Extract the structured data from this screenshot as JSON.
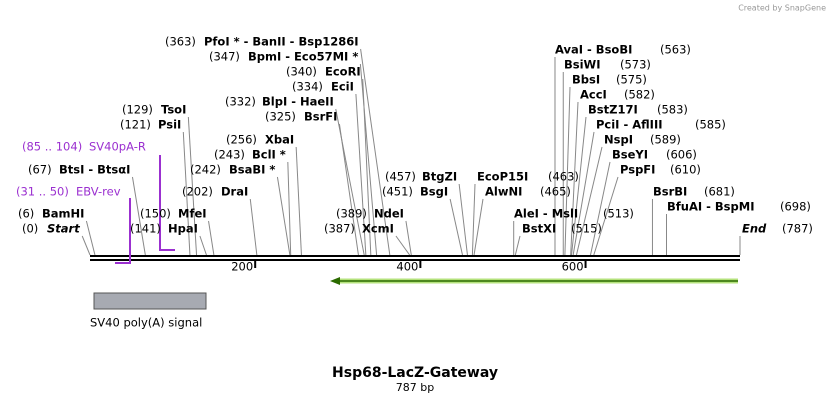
{
  "credit": "Created by SnapGene",
  "title": "Hsp68-LacZ-Gateway",
  "length": "787 bp",
  "ruler": [
    200,
    400,
    600
  ],
  "features": [
    {
      "name": "SV40 poly(A) signal"
    }
  ],
  "primers": [
    {
      "range": "(85 .. 104)",
      "name": "SV40pA-R"
    },
    {
      "range": "(31 .. 50)",
      "name": "EBV-rev"
    }
  ],
  "sites": [
    {
      "pos": "(363)",
      "name": "PfoI * - BanII - Bsp1286I"
    },
    {
      "pos": "(347)",
      "name": "BpmI - Eco57MI *"
    },
    {
      "pos": "(340)",
      "name": "EcoRI"
    },
    {
      "pos": "(334)",
      "name": "EciI"
    },
    {
      "pos": "(332)",
      "name": "BlpI - HaeII"
    },
    {
      "pos": "(325)",
      "name": "BsrFI"
    },
    {
      "pos": "(129)",
      "name": "TsoI"
    },
    {
      "pos": "(121)",
      "name": "PsiI"
    },
    {
      "pos": "(256)",
      "name": "XbaI"
    },
    {
      "pos": "(243)",
      "name": "BclI *"
    },
    {
      "pos": "(67)",
      "name": "BtsI - BtsαI"
    },
    {
      "pos": "(242)",
      "name": "BsaBI *"
    },
    {
      "pos": "(202)",
      "name": "DraI"
    },
    {
      "pos": "(457)",
      "name": "BtgZI"
    },
    {
      "pos": "(451)",
      "name": "BsgI"
    },
    {
      "pos": "(463)",
      "name": "EcoP15I"
    },
    {
      "pos": "(465)",
      "name": "AlwNI"
    },
    {
      "pos": "(6)",
      "name": "BamHI"
    },
    {
      "pos": "(150)",
      "name": "MfeI"
    },
    {
      "pos": "(389)",
      "name": "NdeI"
    },
    {
      "pos": "(513)",
      "name": "AleI - MslI"
    },
    {
      "pos": "(0)",
      "name": "Start"
    },
    {
      "pos": "(141)",
      "name": "HpaI"
    },
    {
      "pos": "(387)",
      "name": "XcmI"
    },
    {
      "pos": "(515)",
      "name": "BstXI"
    },
    {
      "pos": "(787)",
      "name": "End"
    },
    {
      "pos": "(563)",
      "name": "AvaI - BsoBI"
    },
    {
      "pos": "(573)",
      "name": "BsiWI"
    },
    {
      "pos": "(575)",
      "name": "BbsI"
    },
    {
      "pos": "(582)",
      "name": "AccI"
    },
    {
      "pos": "(583)",
      "name": "BstZ17I"
    },
    {
      "pos": "(585)",
      "name": "PciI - AflIII"
    },
    {
      "pos": "(589)",
      "name": "NspI"
    },
    {
      "pos": "(606)",
      "name": "BseYI"
    },
    {
      "pos": "(610)",
      "name": "PspFI"
    },
    {
      "pos": "(681)",
      "name": "BsrBI"
    },
    {
      "pos": "(698)",
      "name": "BfuAI - BspMI"
    }
  ]
}
